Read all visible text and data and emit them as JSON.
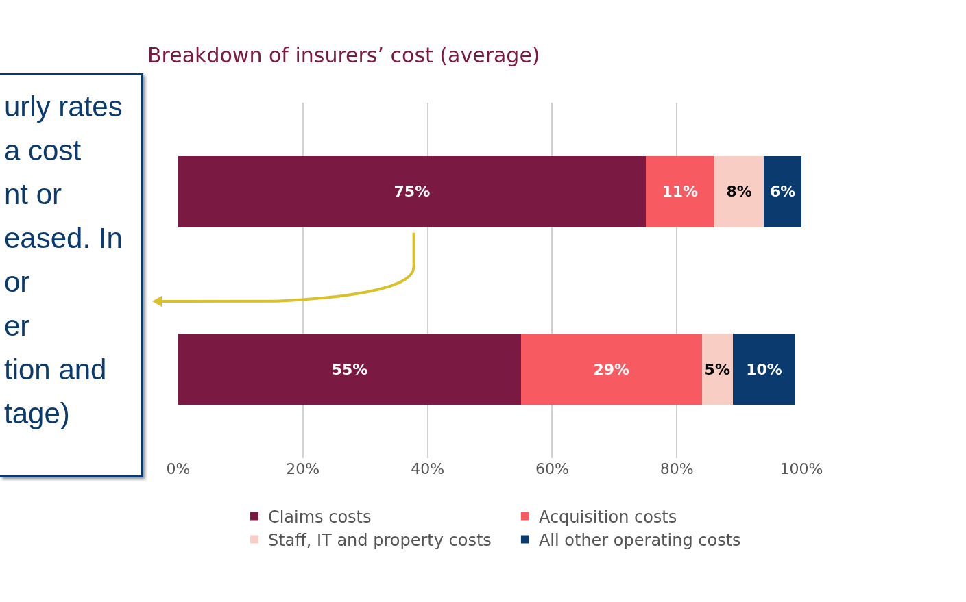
{
  "chart_data": {
    "type": "bar",
    "orientation": "horizontal",
    "stacked": true,
    "title": "Breakdown of insurers’ cost (average)",
    "categories": [
      null,
      null
    ],
    "series": [
      {
        "name": "Claims costs",
        "color": "#7a1a42",
        "values": [
          75,
          55
        ]
      },
      {
        "name": "Acquisition costs",
        "color": "#f85a62",
        "values": [
          11,
          29
        ]
      },
      {
        "name": "Staff, IT and property costs",
        "color": "#f7cdc4",
        "values": [
          8,
          5
        ]
      },
      {
        "name": "All other operating costs",
        "color": "#0b3a6e",
        "values": [
          6,
          10
        ]
      }
    ],
    "value_labels": [
      [
        "75%",
        "55%"
      ],
      [
        "11%",
        "29%"
      ],
      [
        "8%",
        "5%"
      ],
      [
        "6%",
        "10%"
      ]
    ],
    "xlim": [
      0,
      100
    ],
    "xticks": [
      {
        "value": 0,
        "label": "0%"
      },
      {
        "value": 20,
        "label": "20%"
      },
      {
        "value": 40,
        "label": "40%"
      },
      {
        "value": 60,
        "label": "60%"
      },
      {
        "value": 80,
        "label": "80%"
      },
      {
        "value": 100,
        "label": "100%"
      }
    ],
    "grid": "x",
    "legend": "bottom",
    "annotations": [
      "urly rates\na cost\nnt or\neased. In\nor\ner\ntion and\ntage)"
    ]
  }
}
